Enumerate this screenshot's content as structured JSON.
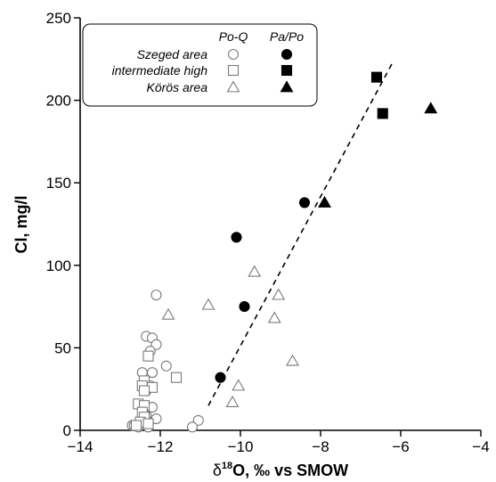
{
  "chart_data": {
    "type": "scatter",
    "title": "",
    "xlabel": {
      "prefix": "δ",
      "superscript": "18",
      "main": "O, ‰ vs SMOW"
    },
    "ylabel": "Cl, mg/l",
    "xlim": [
      -14,
      -4
    ],
    "ylim": [
      0,
      250
    ],
    "xticks": [
      -14,
      -12,
      -10,
      -8,
      -6,
      -4
    ],
    "yticks": [
      0,
      50,
      100,
      150,
      200,
      250
    ],
    "grid": false,
    "legend": {
      "placement": "top-left",
      "col_headers": [
        "Po-Q",
        "Pa/Po"
      ],
      "rows": [
        "Szeged area",
        "intermediate high",
        "Körös area"
      ]
    },
    "series": [
      {
        "name": "Szeged area Po-Q",
        "marker": "circle",
        "filled": false,
        "points": [
          [
            -12.1,
            82
          ],
          [
            -12.35,
            57
          ],
          [
            -12.2,
            56
          ],
          [
            -12.1,
            52
          ],
          [
            -12.25,
            48
          ],
          [
            -11.85,
            39
          ],
          [
            -12.2,
            35
          ],
          [
            -12.45,
            35
          ],
          [
            -12.25,
            27
          ],
          [
            -12.35,
            24
          ],
          [
            -12.2,
            14
          ],
          [
            -12.35,
            9
          ],
          [
            -12.1,
            7
          ],
          [
            -12.3,
            5
          ],
          [
            -11.05,
            6
          ],
          [
            -12.7,
            3
          ],
          [
            -12.55,
            2
          ],
          [
            -12.65,
            3
          ],
          [
            -11.2,
            2
          ],
          [
            -12.3,
            2
          ]
        ]
      },
      {
        "name": "intermediate high Po-Q",
        "marker": "square",
        "filled": false,
        "points": [
          [
            -12.3,
            45
          ],
          [
            -12.4,
            30
          ],
          [
            -12.45,
            27
          ],
          [
            -12.2,
            26
          ],
          [
            -12.4,
            24
          ],
          [
            -11.6,
            32
          ],
          [
            -12.55,
            16
          ],
          [
            -12.4,
            15
          ],
          [
            -12.45,
            11
          ],
          [
            -12.4,
            8
          ],
          [
            -12.5,
            5
          ],
          [
            -12.3,
            4
          ],
          [
            -12.6,
            3
          ]
        ]
      },
      {
        "name": "Körös area Po-Q",
        "marker": "triangle",
        "filled": false,
        "points": [
          [
            -11.8,
            70
          ],
          [
            -10.8,
            76
          ],
          [
            -9.65,
            96
          ],
          [
            -9.05,
            82
          ],
          [
            -9.15,
            68
          ],
          [
            -8.7,
            42
          ],
          [
            -10.05,
            27
          ],
          [
            -10.2,
            17
          ]
        ]
      },
      {
        "name": "Szeged area Pa/Po",
        "marker": "circle",
        "filled": true,
        "points": [
          [
            -10.1,
            117
          ],
          [
            -8.4,
            138
          ],
          [
            -9.9,
            75
          ],
          [
            -10.5,
            32
          ]
        ]
      },
      {
        "name": "intermediate high Pa/Po",
        "marker": "square",
        "filled": true,
        "points": [
          [
            -6.6,
            214
          ],
          [
            -6.45,
            192
          ]
        ]
      },
      {
        "name": "Körös area Pa/Po",
        "marker": "triangle",
        "filled": true,
        "points": [
          [
            -5.25,
            195
          ],
          [
            -7.9,
            138
          ]
        ]
      }
    ],
    "trendline": {
      "style": "dashed",
      "from": [
        -10.8,
        15
      ],
      "to": [
        -6.2,
        223
      ]
    }
  }
}
